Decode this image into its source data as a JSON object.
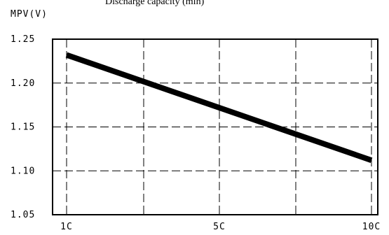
{
  "chart_data": {
    "type": "line",
    "title": "Discharge capacity (min)",
    "ylabel": "MPV(V)",
    "xlabel": "",
    "x_ticks": [
      "1C",
      "5C",
      "10C"
    ],
    "y_ticks": [
      "1.25",
      "1.20",
      "1.15",
      "1.10",
      "1.05"
    ],
    "ylim": [
      1.05,
      1.25
    ],
    "grid": true,
    "series": [
      {
        "x": [
          "1C",
          "10C"
        ],
        "values": [
          1.232,
          1.112
        ]
      }
    ]
  }
}
